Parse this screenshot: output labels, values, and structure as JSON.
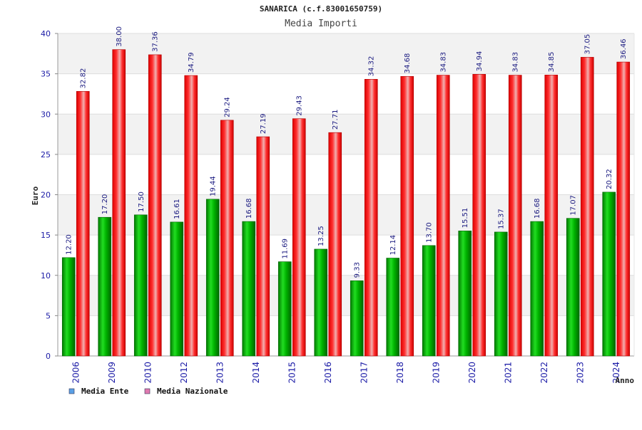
{
  "chart_data": {
    "type": "bar",
    "title": "SANARICA (c.f.83001650759)",
    "subtitle": "Media Importi",
    "ylabel": "Euro",
    "xlabel": "Anno",
    "ylim": [
      0,
      40
    ],
    "yticks": [
      0,
      5,
      10,
      15,
      20,
      25,
      30,
      35,
      40
    ],
    "grid": true,
    "legend_position": "bottom-left",
    "categories": [
      "2006",
      "2009",
      "2010",
      "2012",
      "2013",
      "2014",
      "2015",
      "2016",
      "2017",
      "2018",
      "2019",
      "2020",
      "2021",
      "2022",
      "2023",
      "2024"
    ],
    "series": [
      {
        "name": "Media Ente",
        "color": "#00aa00",
        "legend_color": "#5aa0e6",
        "values": [
          12.2,
          17.2,
          17.5,
          16.61,
          19.44,
          16.68,
          11.69,
          13.25,
          9.33,
          12.14,
          13.7,
          15.51,
          15.37,
          16.68,
          17.07,
          20.32
        ],
        "labels": [
          "12.20",
          "17.20",
          "17.50",
          "16.61",
          "19.44",
          "16.68",
          "11.69",
          "13.25",
          "9.33",
          "12.14",
          "13.70",
          "15.51",
          "15.37",
          "16.68",
          "17.07",
          "20.32"
        ]
      },
      {
        "name": "Media Nazionale",
        "color": "#ee1111",
        "legend_color": "#e07ab0",
        "values": [
          32.82,
          38.0,
          37.36,
          34.79,
          29.24,
          27.19,
          29.43,
          27.71,
          34.32,
          34.68,
          34.83,
          34.94,
          34.83,
          34.85,
          37.05,
          36.46
        ],
        "labels": [
          "32.82",
          "38.00",
          "37.36",
          "34.79",
          "29.24",
          "27.19",
          "29.43",
          "27.71",
          "34.32",
          "34.68",
          "34.83",
          "34.94",
          "34.83",
          "34.85",
          "37.05",
          "36.46"
        ]
      }
    ]
  }
}
